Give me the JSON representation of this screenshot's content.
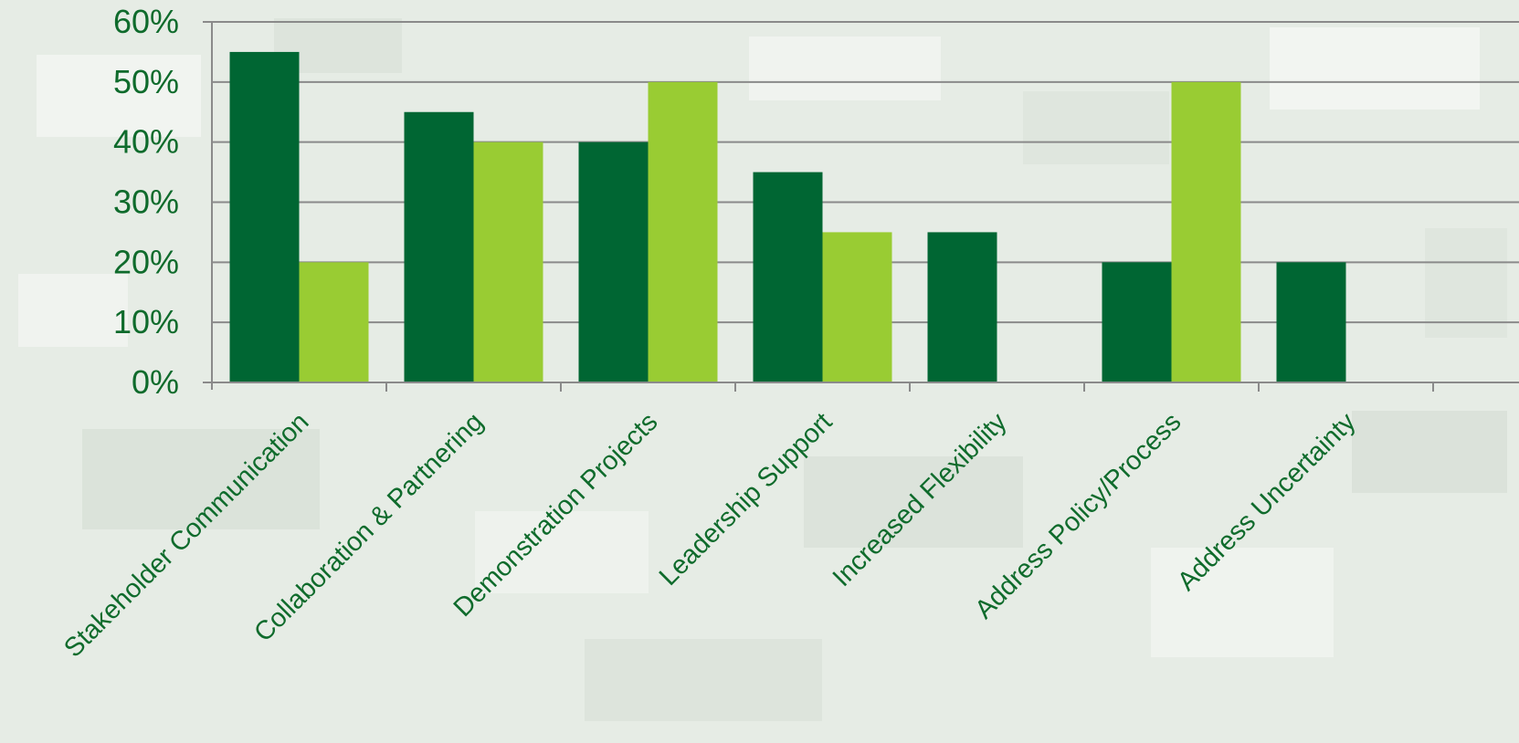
{
  "chart_data": {
    "type": "bar",
    "categories": [
      "Stakeholder Communication",
      "Collaboration & Partnering",
      "Demonstration Projects",
      "Leadership Support",
      "Increased Flexibility",
      "Address Policy/Process",
      "Address Uncertainty"
    ],
    "series": [
      {
        "values": [
          55,
          45,
          40,
          35,
          25,
          20,
          20
        ],
        "color": "#006633"
      },
      {
        "values": [
          20,
          40,
          50,
          25,
          0,
          50,
          0
        ],
        "color": "#99cc33"
      }
    ],
    "yticks": [
      "0%",
      "10%",
      "20%",
      "30%",
      "40%",
      "50%",
      "60%"
    ],
    "ylim": [
      0,
      60
    ],
    "grid": true,
    "title": "",
    "xlabel": "",
    "ylabel": "",
    "text_color": "#0f6b2c",
    "grid_color": "#8a8a8a"
  }
}
